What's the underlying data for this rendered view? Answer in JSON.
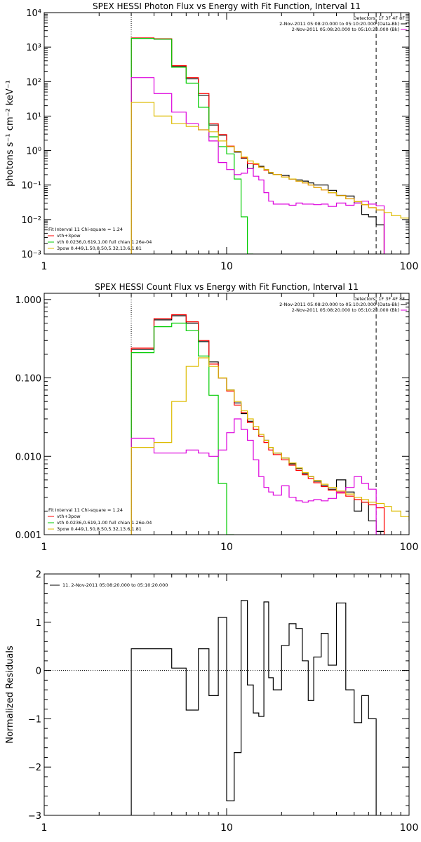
{
  "chart_data": [
    {
      "type": "line",
      "title": "SPEX HESSI Photon Flux vs Energy with Fit Function, Interval 11",
      "ylabel": "photons s⁻¹ cm⁻² keV⁻¹",
      "xscale": "log",
      "yscale": "log",
      "xlim": [
        1,
        100
      ],
      "ylim": [
        0.001,
        10000
      ],
      "xticks": [
        1,
        10,
        100
      ],
      "xtick_labels": [
        "1",
        "10",
        "100"
      ],
      "yticks": [
        0.001,
        0.01,
        0.1,
        1,
        10,
        100,
        1000,
        10000
      ],
      "ytick_labels": [
        "10⁻³",
        "10⁻²",
        "10⁻¹",
        "10⁰",
        "10¹",
        "10²",
        "10³",
        "10⁴"
      ],
      "edges": [
        3,
        4,
        5,
        6,
        7,
        8,
        9,
        10,
        11,
        12,
        13,
        14,
        15,
        16,
        17,
        18,
        20,
        22,
        24,
        26,
        28,
        30,
        33,
        36,
        40,
        45,
        50,
        55,
        60,
        66,
        73,
        80,
        90,
        100
      ],
      "series": [
        {
          "color": "#000000",
          "values": [
            1800,
            1700,
            280,
            120,
            40,
            5.5,
            2.8,
            1.3,
            0.9,
            0.6,
            0.3,
            0.42,
            0.35,
            0.28,
            0.22,
            0.2,
            0.19,
            0.15,
            0.14,
            0.13,
            0.115,
            0.1,
            0.1,
            0.07,
            0.05,
            0.048,
            0.03,
            0.014,
            0.012,
            0.007
          ]
        },
        {
          "color": "#ff0000",
          "values": [
            1850,
            1750,
            290,
            130,
            45,
            6.0,
            2.9,
            1.35,
            0.95,
            0.62,
            0.42,
            0.4,
            0.33,
            0.27,
            0.23,
            0.2,
            0.17,
            0.15,
            0.13,
            0.115,
            0.1,
            0.085,
            0.072,
            0.06,
            0.049,
            0.04,
            0.033,
            0.027,
            0.022,
            0.019
          ]
        },
        {
          "color": "#00cc00",
          "values": [
            1800,
            1700,
            260,
            90,
            18,
            2.5,
            1.3,
            0.8,
            0.15,
            0.012,
            0.0005
          ]
        },
        {
          "color": "#dd00dd",
          "values": [
            130,
            45,
            13,
            6.0,
            4.0,
            1.9,
            0.45,
            0.28,
            0.2,
            0.22,
            0.3,
            0.18,
            0.14,
            0.06,
            0.034,
            0.028,
            0.028,
            0.026,
            0.03,
            0.028,
            0.028,
            0.027,
            0.028,
            0.024,
            0.03,
            0.026,
            0.03,
            0.034,
            0.028,
            0.025
          ]
        },
        {
          "color": "#ddbb00",
          "values": [
            25,
            10,
            6.0,
            5.0,
            4.0,
            3.5,
            1.9,
            1.3,
            0.95,
            0.65,
            0.5,
            0.42,
            0.33,
            0.28,
            0.23,
            0.2,
            0.17,
            0.15,
            0.13,
            0.115,
            0.1,
            0.085,
            0.072,
            0.06,
            0.049,
            0.04,
            0.033,
            0.027,
            0.022,
            0.019,
            0.016,
            0.013,
            0.011,
            0.009
          ]
        }
      ],
      "vlines": [
        {
          "x": 3,
          "style": "dotted"
        },
        {
          "x": 66,
          "style": "dashed"
        }
      ],
      "legend_topright": [
        {
          "text": "Detectors: 1F 3F 4F 8F"
        },
        {
          "text": "2-Nov-2011 05:08:20.000 to 05:10:20.000 (Data-Bk)",
          "color": "#000000"
        },
        {
          "text": "2-Nov-2011 05:08:20.000 to 05:10:20.000 (Bk)",
          "color": "#dd00dd"
        }
      ],
      "legend_bottomleft": [
        {
          "text": "Fit Interval 11   Chi-square = 1.24"
        },
        {
          "text": "vth+3pow",
          "color": "#ff0000"
        },
        {
          "text": "vth 0.0236,0.619,1.00  full chian 1.26e-04",
          "color": "#00cc00"
        },
        {
          "text": "3pow 0.449,1.50,8.50,5.32,13.6,1.81",
          "color": "#ddbb00"
        }
      ]
    },
    {
      "type": "line",
      "title": "SPEX HESSI Count Flux vs Energy with Fit Function, Interval 11",
      "ylabel": "",
      "xscale": "log",
      "yscale": "log",
      "xlim": [
        1,
        100
      ],
      "ylim": [
        0.001,
        1.2
      ],
      "xticks": [
        1,
        10,
        100
      ],
      "xtick_labels": [
        "1",
        "10",
        "100"
      ],
      "yticks": [
        0.001,
        0.01,
        0.1,
        1
      ],
      "ytick_labels": [
        "0.001",
        "0.010",
        "0.100",
        "1.000"
      ],
      "edges": [
        3,
        4,
        5,
        6,
        7,
        8,
        9,
        10,
        11,
        12,
        13,
        14,
        15,
        16,
        17,
        18,
        20,
        22,
        24,
        26,
        28,
        30,
        33,
        36,
        40,
        45,
        50,
        55,
        60,
        66,
        73,
        80,
        90,
        100
      ],
      "series": [
        {
          "color": "#000000",
          "values": [
            0.23,
            0.55,
            0.62,
            0.5,
            0.29,
            0.16,
            0.1,
            0.07,
            0.048,
            0.035,
            0.028,
            0.022,
            0.018,
            0.016,
            0.013,
            0.011,
            0.0095,
            0.008,
            0.007,
            0.006,
            0.0055,
            0.0048,
            0.0042,
            0.0038,
            0.005,
            0.0035,
            0.002,
            0.0026,
            0.0015,
            0.0011
          ]
        },
        {
          "color": "#ff0000",
          "values": [
            0.24,
            0.57,
            0.64,
            0.52,
            0.3,
            0.15,
            0.1,
            0.068,
            0.045,
            0.036,
            0.027,
            0.022,
            0.018,
            0.015,
            0.012,
            0.0105,
            0.009,
            0.0077,
            0.0066,
            0.0058,
            0.0052,
            0.0046,
            0.0041,
            0.0037,
            0.0034,
            0.0031,
            0.0028,
            0.0026,
            0.0024,
            0.0022
          ]
        },
        {
          "color": "#00cc00",
          "values": [
            0.21,
            0.45,
            0.5,
            0.4,
            0.19,
            0.06,
            0.0045,
            0.0005
          ]
        },
        {
          "color": "#dd00dd",
          "values": [
            0.017,
            0.011,
            0.011,
            0.012,
            0.011,
            0.01,
            0.012,
            0.02,
            0.03,
            0.022,
            0.016,
            0.009,
            0.0055,
            0.004,
            0.0035,
            0.0032,
            0.0042,
            0.003,
            0.0027,
            0.0026,
            0.0027,
            0.0028,
            0.0027,
            0.0029,
            0.0035,
            0.004,
            0.0055,
            0.0045,
            0.0038,
            0.0005
          ]
        },
        {
          "color": "#ddbb00",
          "values": [
            0.013,
            0.015,
            0.05,
            0.14,
            0.18,
            0.14,
            0.1,
            0.07,
            0.05,
            0.038,
            0.03,
            0.024,
            0.019,
            0.016,
            0.013,
            0.011,
            0.0095,
            0.0082,
            0.0071,
            0.0062,
            0.0055,
            0.0049,
            0.0044,
            0.004,
            0.0036,
            0.0033,
            0.003,
            0.0028,
            0.0026,
            0.0025,
            0.0023,
            0.002,
            0.0017,
            0.0015
          ]
        }
      ],
      "vlines": [
        {
          "x": 3,
          "style": "dotted"
        },
        {
          "x": 66,
          "style": "dashed"
        }
      ],
      "legend_topright": [
        {
          "text": "Detectors: 1F 3F 4F 8F"
        },
        {
          "text": "2-Nov-2011 05:08:20.000 to 05:10:20.000 (Data-Bk)",
          "color": "#000000"
        },
        {
          "text": "2-Nov-2011 05:08:20.000 to 05:10:20.000 (Bk)",
          "color": "#dd00dd"
        }
      ],
      "legend_bottomleft": [
        {
          "text": "Fit Interval 11   Chi-square = 1.24"
        },
        {
          "text": "vth+3pow",
          "color": "#ff0000"
        },
        {
          "text": "vth 0.0236,0.619,1.00  full chian 1.26e-04",
          "color": "#00cc00"
        },
        {
          "text": "3pow 0.449,1.50,8.50,5.32,13.6,1.81",
          "color": "#ddbb00"
        }
      ]
    },
    {
      "type": "line",
      "title": "",
      "ylabel": "Normalized Residuals",
      "xscale": "log",
      "yscale": "linear",
      "xlim": [
        1,
        100
      ],
      "ylim": [
        -3,
        2
      ],
      "xticks": [
        1,
        10,
        100
      ],
      "xtick_labels": [
        "1",
        "10",
        "100"
      ],
      "yticks": [
        -3,
        -2,
        -1,
        0,
        1,
        2
      ],
      "ytick_labels": [
        "−3",
        "−2",
        "−1",
        "0",
        "1",
        "2"
      ],
      "edges": [
        3,
        4,
        5,
        6,
        7,
        8,
        9,
        10,
        11,
        12,
        13,
        14,
        15,
        16,
        17,
        18,
        20,
        22,
        24,
        26,
        28,
        30,
        33,
        36,
        40,
        45,
        50,
        55,
        60,
        66
      ],
      "series": [
        {
          "color": "#000000",
          "values": [
            0.45,
            0.45,
            0.05,
            -0.82,
            0.45,
            -0.52,
            1.1,
            -2.7,
            -1.7,
            1.45,
            -0.3,
            -0.88,
            -0.95,
            1.42,
            -0.15,
            -0.4,
            0.52,
            0.97,
            0.87,
            0.2,
            -0.62,
            0.28,
            0.77,
            0.11,
            1.4,
            -0.4,
            -1.08,
            -0.52,
            -1.0
          ]
        }
      ],
      "hlines": [
        {
          "y": 0,
          "style": "dotted"
        }
      ],
      "legend_topleft": [
        {
          "text": "11.  2-Nov-2011 05:08:20.000 to 05:10:20.000",
          "color": "#000000"
        }
      ]
    }
  ]
}
